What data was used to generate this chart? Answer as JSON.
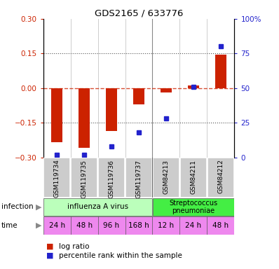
{
  "title": "GDS2165 / 633776",
  "samples": [
    "GSM119734",
    "GSM119735",
    "GSM119736",
    "GSM119737",
    "GSM84213",
    "GSM84211",
    "GSM84212"
  ],
  "log_ratio": [
    -0.235,
    -0.26,
    -0.185,
    -0.07,
    -0.02,
    0.01,
    0.145
  ],
  "percentile_rank": [
    2,
    2,
    8,
    18,
    28,
    51,
    80
  ],
  "ylim_left": [
    -0.3,
    0.3
  ],
  "ylim_right": [
    0,
    100
  ],
  "infection_groups": [
    {
      "text": "influenza A virus",
      "start": 0,
      "end": 3,
      "color": "#bbffbb"
    },
    {
      "text": "Streptococcus\npneumoniae",
      "start": 4,
      "end": 6,
      "color": "#44ee44"
    }
  ],
  "time_labels": [
    "24 h",
    "48 h",
    "96 h",
    "168 h",
    "12 h",
    "24 h",
    "48 h"
  ],
  "time_color_groups": [
    {
      "start": 0,
      "end": 3,
      "color": "#ee88ee"
    },
    {
      "start": 4,
      "end": 6,
      "color": "#dd77dd"
    }
  ],
  "bar_color": "#cc2200",
  "dot_color": "#2222cc",
  "hline_color": "#cc2200",
  "dotted_color": "#555555",
  "sample_bg_color": "#cccccc",
  "left_tick_color": "#cc2200",
  "right_tick_color": "#2222cc"
}
